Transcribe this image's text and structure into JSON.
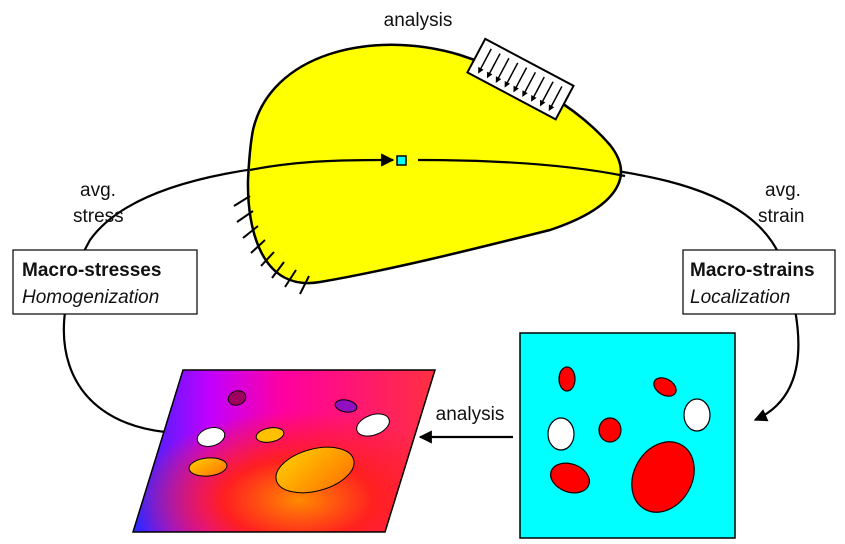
{
  "labels": {
    "analysis_top": "analysis",
    "avg_stress": [
      "avg.",
      "stress"
    ],
    "avg_strain": [
      "avg.",
      "strain"
    ],
    "analysis_bottom": "analysis"
  },
  "left_box": {
    "title": "Macro-stresses",
    "subtitle": "Homogenization"
  },
  "right_box": {
    "title": "Macro-strains",
    "subtitle": "Localization"
  },
  "colors": {
    "body_fill": "#ffff00",
    "rve_fill": "#00ffff",
    "inclusion_red": "#ff0000",
    "void_white": "#ffffff",
    "point_marker": "#00ffff"
  },
  "icons": {
    "load": "distributed-load-arrows",
    "support": "fixed-support-hatching"
  }
}
